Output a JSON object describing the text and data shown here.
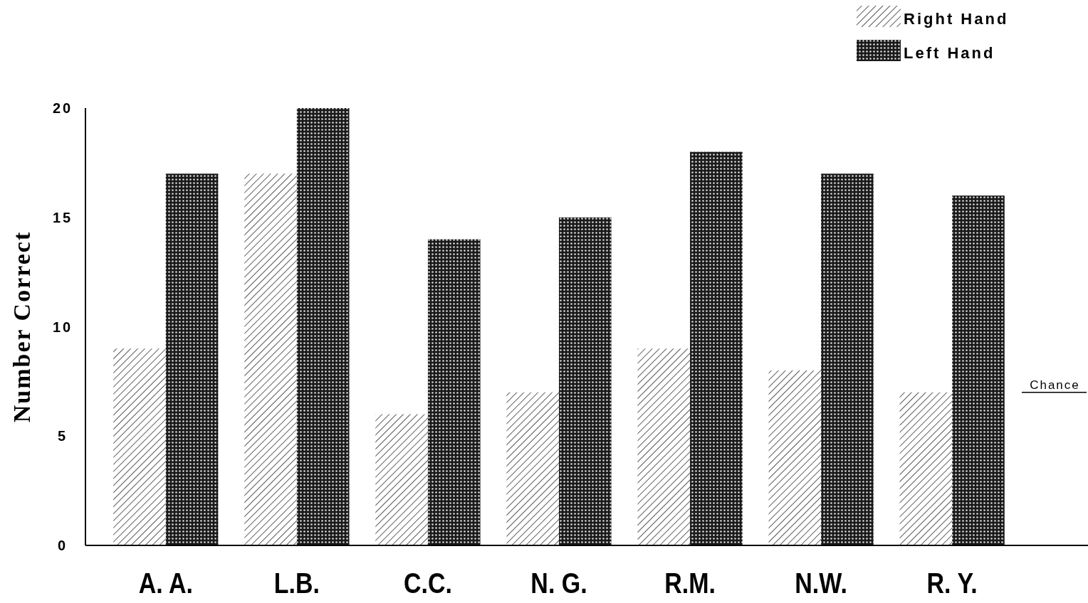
{
  "chart_data": {
    "type": "bar",
    "ylabel": "Number Correct",
    "categories": [
      "A. A.",
      "L.B.",
      "C.C.",
      "N. G.",
      "R.M.",
      "N.W.",
      "R. Y."
    ],
    "series": [
      {
        "name": "Right Hand",
        "color": "#333333",
        "values": [
          9,
          17,
          6,
          7,
          9,
          8,
          7
        ]
      },
      {
        "name": "Left Hand",
        "color": "#1a1a1a",
        "values": [
          17,
          20,
          14,
          15,
          18,
          17,
          16
        ]
      }
    ],
    "ylim": [
      0,
      20
    ],
    "yticks": [
      0,
      5,
      10,
      15,
      20
    ],
    "grid": false,
    "legend": "top right",
    "ref_lines": [
      {
        "axis": "y",
        "value": 7,
        "label": "Chance",
        "color": "#000000"
      }
    ]
  }
}
